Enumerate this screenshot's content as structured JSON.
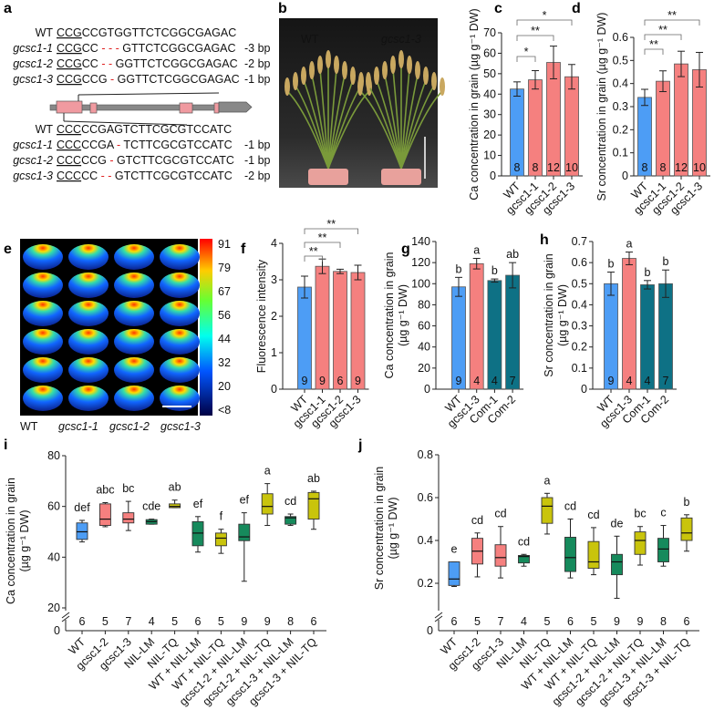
{
  "panel_labels": [
    "a",
    "b",
    "c",
    "d",
    "e",
    "f",
    "g",
    "h",
    "i",
    "j"
  ],
  "colors": {
    "wt_blue": "#4d9df5",
    "mutant_pink": "#f5807f",
    "complement_teal": "#0e7185",
    "nil_lm_green": "#168a5c",
    "nil_tq_olive": "#c9c40c",
    "deletion_red": "#e02020"
  },
  "panel_a": {
    "upper": [
      {
        "label": "WT",
        "pam": "CCG",
        "seq1": "CCGTGGTTCTCGGCGAGAC",
        "gap": "",
        "seq2": "",
        "bp": ""
      },
      {
        "label": "gcsc1-1",
        "pam": "CCG",
        "seq1": "CC ",
        "gap": "- - -",
        "seq2": " GTTCTCGGCGAGAC",
        "bp": "-3 bp"
      },
      {
        "label": "gcsc1-2",
        "pam": "CCG",
        "seq1": "CC ",
        "gap": "- -",
        "seq2": " GGTTCTCGGCGAGAC",
        "bp": "-2 bp"
      },
      {
        "label": "gcsc1-3",
        "pam": "CCG",
        "seq1": "CCG ",
        "gap": "-",
        "seq2": " GGTTCTCGGCGAGAC",
        "bp": "-1 bp"
      }
    ],
    "lower": [
      {
        "label": "WT",
        "pam": "CCC",
        "seq1": "CCGAGTCTTCGCGTCCATC",
        "gap": "",
        "seq2": "",
        "bp": ""
      },
      {
        "label": "gcsc1-1",
        "pam": "CCC",
        "seq1": "CCGA ",
        "gap": "-",
        "seq2": " TCTTCGCGTCCATC",
        "bp": "-1 bp"
      },
      {
        "label": "gcsc1-2",
        "pam": "CCC",
        "seq1": "CCG ",
        "gap": "-",
        "seq2": " GTCTTCGCGTCCATC",
        "bp": "-1 bp"
      },
      {
        "label": "gcsc1-3",
        "pam": "CCC",
        "seq1": "CC ",
        "gap": "- -",
        "seq2": " GTCTTCGCGTCCATC",
        "bp": "-2 bp"
      }
    ]
  },
  "panel_b": {
    "labels": [
      "WT",
      "gcsc1-3"
    ]
  },
  "panel_e": {
    "colorbar_ticks": [
      "91",
      "79",
      "67",
      "56",
      "44",
      "32",
      "20",
      "<8"
    ],
    "genotypes": [
      "WT",
      "gcsc1-1",
      "gcsc1-2",
      "gcsc1-3"
    ]
  },
  "chart_data": [
    {
      "panel": "c",
      "type": "bar",
      "categories": [
        "WT",
        "gcsc1-1",
        "gcsc1-2",
        "gcsc1-3"
      ],
      "values": [
        42.5,
        47,
        55.5,
        48.5
      ],
      "errors": [
        3.5,
        4.5,
        8,
        6
      ],
      "n": [
        "8",
        "8",
        "12",
        "10"
      ],
      "ylabel": "Ca concentration in grain (µg g⁻¹ DW)",
      "ylim": [
        0,
        70
      ],
      "yticks": [
        "0",
        "10",
        "20",
        "30",
        "40",
        "50",
        "60",
        "70"
      ],
      "colors": [
        "#4d9df5",
        "#f5807f",
        "#f5807f",
        "#f5807f"
      ],
      "significance": [
        {
          "from": 0,
          "to": 1,
          "label": "*"
        },
        {
          "from": 0,
          "to": 2,
          "label": "**"
        },
        {
          "from": 0,
          "to": 3,
          "label": "*"
        }
      ]
    },
    {
      "panel": "d",
      "type": "bar",
      "categories": [
        "WT",
        "gcsc1-1",
        "gcsc1-2",
        "gcsc1-3"
      ],
      "values": [
        0.34,
        0.41,
        0.485,
        0.46
      ],
      "errors": [
        0.035,
        0.045,
        0.055,
        0.075
      ],
      "n": [
        "8",
        "8",
        "12",
        "10"
      ],
      "ylabel": "Sr concentration in grain (µg g⁻¹ DW)",
      "ylim": [
        0,
        0.6
      ],
      "yticks": [
        "0",
        "0.1",
        "0.2",
        "0.3",
        "0.4",
        "0.5",
        "0.6"
      ],
      "colors": [
        "#4d9df5",
        "#f5807f",
        "#f5807f",
        "#f5807f"
      ],
      "significance": [
        {
          "from": 0,
          "to": 1,
          "label": "**"
        },
        {
          "from": 0,
          "to": 2,
          "label": "**"
        },
        {
          "from": 0,
          "to": 3,
          "label": "**"
        }
      ]
    },
    {
      "panel": "f",
      "type": "bar",
      "categories": [
        "WT",
        "gcsc1-1",
        "gcsc1-2",
        "gcsc1-3"
      ],
      "values": [
        2.8,
        3.37,
        3.23,
        3.2
      ],
      "errors": [
        0.3,
        0.2,
        0.06,
        0.2
      ],
      "n": [
        "9",
        "9",
        "6",
        "9"
      ],
      "ylabel": "Fluorescence intensity",
      "ylim": [
        0,
        4
      ],
      "yticks": [
        "0",
        "1",
        "2",
        "3",
        "4"
      ],
      "colors": [
        "#4d9df5",
        "#f5807f",
        "#f5807f",
        "#f5807f"
      ],
      "significance": [
        {
          "from": 0,
          "to": 1,
          "label": "**"
        },
        {
          "from": 0,
          "to": 2,
          "label": "**"
        },
        {
          "from": 0,
          "to": 3,
          "label": "**"
        }
      ]
    },
    {
      "panel": "g",
      "type": "bar",
      "categories": [
        "WT",
        "gcsc1-3",
        "Com-1",
        "Com-2"
      ],
      "values": [
        97,
        119,
        103,
        108
      ],
      "errors": [
        9,
        5,
        1.5,
        12
      ],
      "n": [
        "9",
        "4",
        "4",
        "7"
      ],
      "letters": [
        "b",
        "a",
        "b",
        "ab"
      ],
      "ylabel": [
        "Ca concentration in grain",
        "(µg g⁻¹ DW)"
      ],
      "ylim": [
        0,
        140
      ],
      "yticks": [
        "0",
        "20",
        "40",
        "60",
        "80",
        "100",
        "120",
        "140"
      ],
      "colors": [
        "#4d9df5",
        "#f5807f",
        "#0e7185",
        "#0e7185"
      ]
    },
    {
      "panel": "h",
      "type": "bar",
      "categories": [
        "WT",
        "gcsc1-3",
        "Com-1",
        "Com-2"
      ],
      "values": [
        0.5,
        0.62,
        0.495,
        0.5
      ],
      "errors": [
        0.055,
        0.03,
        0.02,
        0.065
      ],
      "n": [
        "9",
        "4",
        "4",
        "7"
      ],
      "letters": [
        "b",
        "a",
        "b",
        "b"
      ],
      "ylabel": [
        "Sr concentration in grain",
        "(µg g⁻¹ DW)"
      ],
      "ylim": [
        0,
        0.7
      ],
      "yticks": [
        "0",
        "0.1",
        "0.2",
        "0.3",
        "0.4",
        "0.5",
        "0.6",
        "0.7"
      ],
      "colors": [
        "#4d9df5",
        "#f5807f",
        "#0e7185",
        "#0e7185"
      ]
    },
    {
      "panel": "i",
      "type": "box",
      "categories": [
        "WT",
        "gcsc1-2",
        "gcsc1-3",
        "NIL-LM",
        "NIL-TQ",
        "WT + NIL-LM",
        "WT + NIL-TQ",
        "gcsc1-2 + NIL-LM",
        "gcsc1-2 + NIL-TQ",
        "gcsc1-3 + NIL-LM",
        "gcsc1-3 + NIL-TQ"
      ],
      "boxes": [
        [
          46,
          47,
          50,
          53.5,
          54.5
        ],
        [
          52,
          52.5,
          55,
          61,
          61.5
        ],
        [
          50.5,
          53.5,
          55,
          57.5,
          62
        ],
        [
          53,
          53,
          54,
          54.8,
          55
        ],
        [
          59.5,
          59.5,
          60,
          61,
          62.5
        ],
        [
          42,
          44.5,
          49.5,
          54,
          56
        ],
        [
          41.5,
          44.5,
          47.5,
          49.5,
          51
        ],
        [
          30.5,
          46.5,
          48,
          53,
          57.5
        ],
        [
          52.5,
          57,
          60,
          65,
          69
        ],
        [
          52.5,
          53,
          55.5,
          56,
          57
        ],
        [
          51,
          55,
          63,
          65.5,
          66
        ]
      ],
      "box_fields": [
        "min",
        "q1",
        "median",
        "q3",
        "max"
      ],
      "n": [
        "6",
        "5",
        "7",
        "4",
        "5",
        "6",
        "5",
        "9",
        "9",
        "8",
        "6"
      ],
      "letters": [
        "def",
        "abc",
        "bc",
        "cde",
        "ab",
        "ef",
        "f",
        "ef",
        "a",
        "cd",
        "ab"
      ],
      "ylabel": [
        "Ca concentration in grain",
        "(µg g⁻¹ DW)"
      ],
      "ylim": [
        20,
        80
      ],
      "yticks": [
        "80",
        "60",
        "40",
        "20"
      ],
      "axis_break": true,
      "zero_label": "0",
      "colors": [
        "#4d9df5",
        "#f5807f",
        "#f5807f",
        "#168a5c",
        "#c9c40c",
        "#168a5c",
        "#c9c40c",
        "#168a5c",
        "#c9c40c",
        "#168a5c",
        "#c9c40c"
      ]
    },
    {
      "panel": "j",
      "type": "box",
      "categories": [
        "WT",
        "gcsc1-2",
        "gcsc1-3",
        "NIL-LM",
        "NIL-TQ",
        "WT + NIL-LM",
        "WT + NIL-TQ",
        "gcsc1-2 + NIL-LM",
        "gcsc1-2 + NIL-TQ",
        "gcsc1-3 + NIL-LM",
        "gcsc1-3 + NIL-TQ"
      ],
      "boxes": [
        [
          0.185,
          0.19,
          0.22,
          0.3,
          0.3
        ],
        [
          0.23,
          0.29,
          0.35,
          0.41,
          0.435
        ],
        [
          0.225,
          0.28,
          0.32,
          0.38,
          0.465
        ],
        [
          0.28,
          0.295,
          0.325,
          0.33,
          0.335
        ],
        [
          0.43,
          0.48,
          0.56,
          0.6,
          0.62
        ],
        [
          0.225,
          0.255,
          0.32,
          0.415,
          0.5
        ],
        [
          0.24,
          0.27,
          0.3,
          0.395,
          0.46
        ],
        [
          0.13,
          0.24,
          0.3,
          0.335,
          0.42
        ],
        [
          0.285,
          0.335,
          0.4,
          0.44,
          0.465
        ],
        [
          0.28,
          0.3,
          0.36,
          0.41,
          0.47
        ],
        [
          0.35,
          0.4,
          0.435,
          0.505,
          0.52
        ]
      ],
      "box_fields": [
        "min",
        "q1",
        "median",
        "q3",
        "max"
      ],
      "n": [
        "6",
        "5",
        "7",
        "4",
        "5",
        "6",
        "5",
        "9",
        "9",
        "8",
        "6"
      ],
      "letters": [
        "e",
        "cd",
        "cd",
        "cd",
        "a",
        "cd",
        "cd",
        "de",
        "bc",
        "c",
        "b"
      ],
      "ylabel": [
        "Sr concentration in grain",
        "(µg g⁻¹ DW)"
      ],
      "ylim": [
        0.2,
        0.8
      ],
      "yticks": [
        "0.8",
        "0.6",
        "0.4",
        "0.2"
      ],
      "axis_break": true,
      "zero_label": "0",
      "colors": [
        "#4d9df5",
        "#f5807f",
        "#f5807f",
        "#168a5c",
        "#c9c40c",
        "#168a5c",
        "#c9c40c",
        "#168a5c",
        "#c9c40c",
        "#168a5c",
        "#c9c40c"
      ]
    }
  ]
}
